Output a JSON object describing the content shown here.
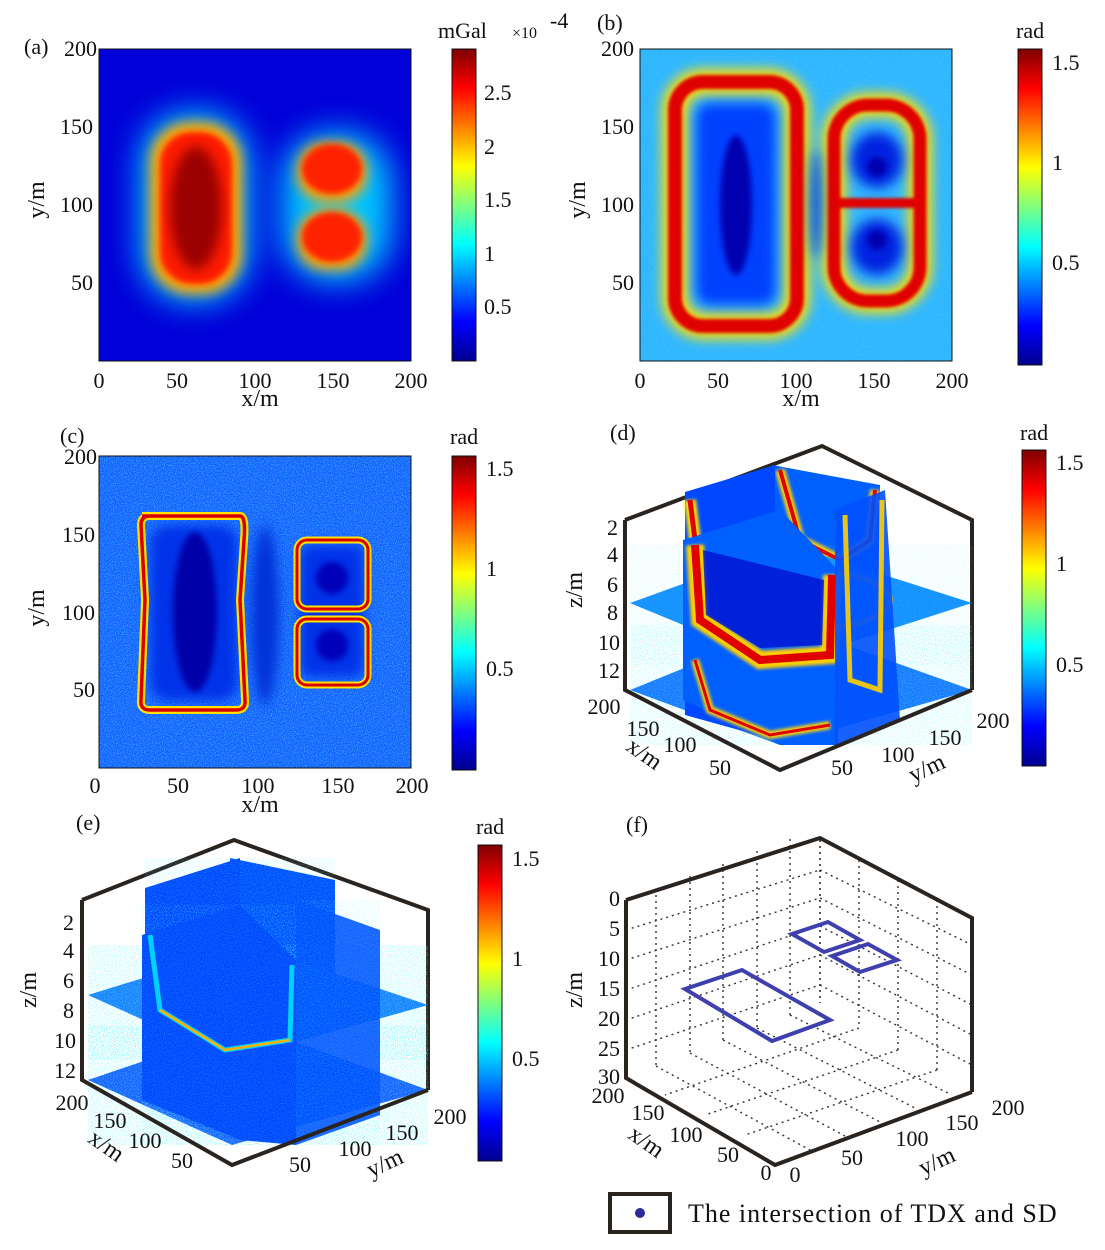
{
  "colors": {
    "jet": [
      "#00008f",
      "#0000ff",
      "#007fff",
      "#00ffff",
      "#7fff7f",
      "#ffff00",
      "#ff7f00",
      "#ff0000",
      "#7f0000"
    ],
    "outline": "#3f3fae",
    "dot": "#2b2b9a",
    "axis": "#111111"
  },
  "chart_data": [
    {
      "type": "heatmap",
      "panel": "(a)",
      "xlabel": "x/m",
      "ylabel": "y/m",
      "xticks": [
        "0",
        "50",
        "100",
        "150",
        "200"
      ],
      "yticks": [
        "50",
        "100",
        "150",
        "200"
      ],
      "xlim": [
        0,
        200
      ],
      "ylim": [
        0,
        200
      ],
      "colorbar": {
        "unit": "mGal",
        "multiplier": "×10",
        "exponent": "-4",
        "range": [
          0,
          2.85
        ],
        "ticks": [
          "0.5",
          "1",
          "1.5",
          "2",
          "2.5"
        ]
      },
      "anomalies": [
        {
          "shape": "rectangle",
          "x_center": 60,
          "y_center": 100,
          "width": 60,
          "height": 120
        },
        {
          "shape": "rectangle",
          "x_center": 150,
          "y_center": 124,
          "width": 40,
          "height": 40
        },
        {
          "shape": "rectangle",
          "x_center": 150,
          "y_center": 80,
          "width": 40,
          "height": 40
        }
      ]
    },
    {
      "type": "heatmap",
      "panel": "(b)",
      "xlabel": "x/m",
      "ylabel": "y/m",
      "xticks": [
        "0",
        "50",
        "100",
        "150",
        "200"
      ],
      "yticks": [
        "50",
        "100",
        "150",
        "200"
      ],
      "xlim": [
        0,
        200
      ],
      "ylim": [
        0,
        200
      ],
      "colorbar": {
        "unit": "rad",
        "range": [
          0,
          1.57
        ],
        "ticks": [
          "0.5",
          "1",
          "1.5"
        ]
      }
    },
    {
      "type": "heatmap",
      "panel": "(c)",
      "xlabel": "x/m",
      "ylabel": "y/m",
      "xticks": [
        "0",
        "50",
        "100",
        "150",
        "200"
      ],
      "yticks": [
        "50",
        "100",
        "150",
        "200"
      ],
      "xlim": [
        0,
        200
      ],
      "ylim": [
        0,
        200
      ],
      "colorbar": {
        "unit": "rad",
        "range": [
          0,
          1.57
        ],
        "ticks": [
          "0.5",
          "1",
          "1.5"
        ]
      }
    },
    {
      "type": "heatmap",
      "panel": "(d)",
      "xlabel": "x/m",
      "ylabel": "y/m",
      "zlabel": "z/m",
      "xticks": [
        "200",
        "150",
        "100",
        "50"
      ],
      "yticks": [
        "50",
        "100",
        "150",
        "200"
      ],
      "zticks": [
        "2",
        "4",
        "6",
        "8",
        "10",
        "12"
      ],
      "colorbar": {
        "unit": "rad",
        "range": [
          0,
          1.57
        ],
        "ticks": [
          "0.5",
          "1",
          "1.5"
        ]
      }
    },
    {
      "type": "heatmap",
      "panel": "(e)",
      "xlabel": "x/m",
      "ylabel": "y/m",
      "zlabel": "z/m",
      "xticks": [
        "200",
        "150",
        "100",
        "50"
      ],
      "yticks": [
        "50",
        "100",
        "150",
        "200"
      ],
      "zticks": [
        "2",
        "4",
        "6",
        "8",
        "10",
        "12"
      ],
      "colorbar": {
        "unit": "rad",
        "range": [
          0,
          1.57
        ],
        "ticks": [
          "0.5",
          "1",
          "1.5"
        ]
      }
    },
    {
      "type": "line",
      "panel": "(f)",
      "xlabel": "x/m",
      "ylabel": "y/m",
      "zlabel": "z/m",
      "xticks": [
        "200",
        "150",
        "100",
        "50",
        "0"
      ],
      "yticks": [
        "0",
        "50",
        "100",
        "150",
        "200"
      ],
      "zticks": [
        "0",
        "5",
        "10",
        "15",
        "20",
        "25",
        "30"
      ],
      "grid": true,
      "legend": {
        "label": "The intersection of TDX and SD",
        "placement": "bottom-right"
      },
      "outlines": [
        {
          "x_range": [
            30,
            90
          ],
          "y_range": [
            40,
            160
          ],
          "z": 15
        },
        {
          "x_range": [
            130,
            170
          ],
          "y_range": [
            104,
            144
          ],
          "z": 5
        },
        {
          "x_range": [
            130,
            170
          ],
          "y_range": [
            60,
            100
          ],
          "z": 10
        }
      ]
    }
  ]
}
